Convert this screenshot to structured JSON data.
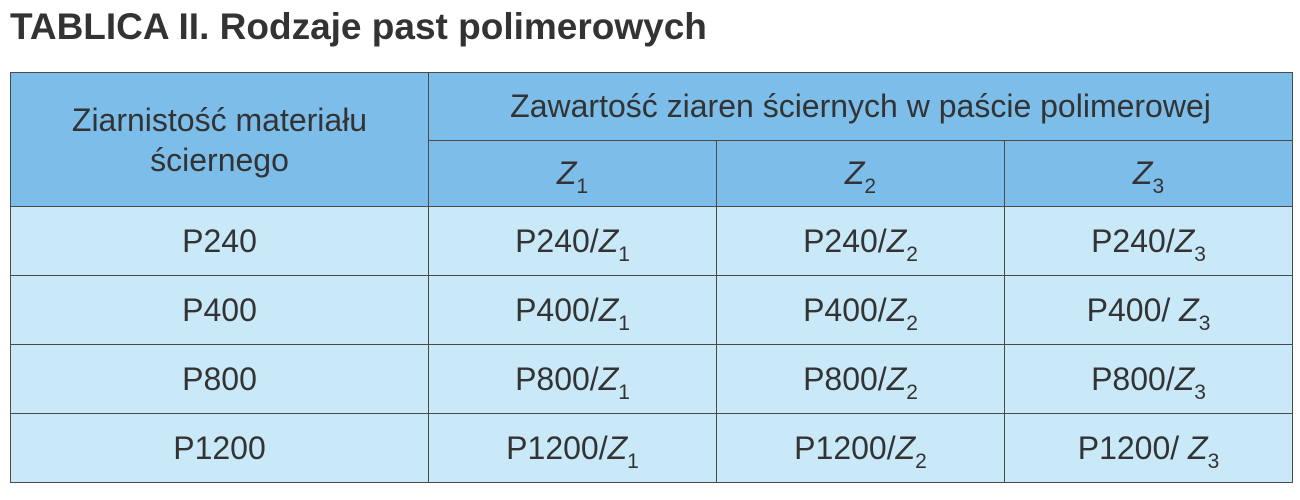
{
  "title": "TABLICA II. Rodzaje past polimerowych",
  "table": {
    "header": {
      "first_column": "Ziarnistość materiału ściernego",
      "group": "Zawartość ziaren ściernych w paście polimerowej",
      "columns": [
        {
          "symbol": "Z",
          "index": "1"
        },
        {
          "symbol": "Z",
          "index": "2"
        },
        {
          "symbol": "Z",
          "index": "3"
        }
      ]
    },
    "rows": [
      {
        "grade": "P240",
        "cells": [
          {
            "base": "P240/",
            "symbol": "Z",
            "index": "1"
          },
          {
            "base": "P240/",
            "symbol": "Z",
            "index": "2"
          },
          {
            "base": "P240/",
            "symbol": "Z",
            "index": "3"
          }
        ]
      },
      {
        "grade": "P400",
        "cells": [
          {
            "base": "P400/",
            "symbol": "Z",
            "index": "1"
          },
          {
            "base": "P400/",
            "symbol": "Z",
            "index": "2"
          },
          {
            "base": "P400/ ",
            "symbol": "Z",
            "index": "3"
          }
        ]
      },
      {
        "grade": "P800",
        "cells": [
          {
            "base": "P800/",
            "symbol": "Z",
            "index": "1"
          },
          {
            "base": "P800/",
            "symbol": "Z",
            "index": "2"
          },
          {
            "base": "P800/",
            "symbol": "Z",
            "index": "3"
          }
        ]
      },
      {
        "grade": "P1200",
        "cells": [
          {
            "base": "P1200/",
            "symbol": "Z",
            "index": "1"
          },
          {
            "base": "P1200/",
            "symbol": "Z",
            "index": "2"
          },
          {
            "base": "P1200/ ",
            "symbol": "Z",
            "index": "3"
          }
        ]
      }
    ]
  }
}
